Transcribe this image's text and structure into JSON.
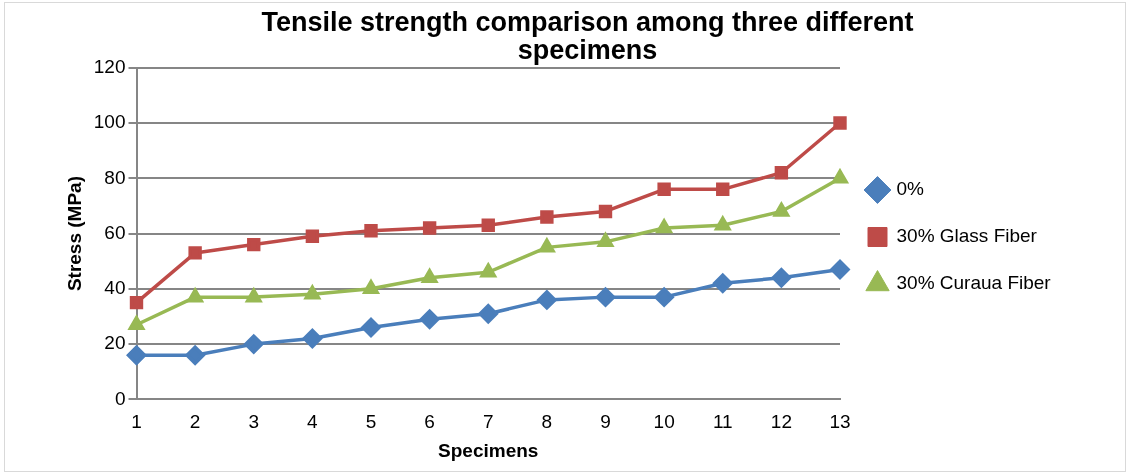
{
  "chart_data": {
    "type": "line",
    "title": "Tensile strength comparison among three different specimens",
    "xlabel": "Specimens",
    "ylabel": "Stress (MPa)",
    "categories": [
      "1",
      "2",
      "3",
      "4",
      "5",
      "6",
      "7",
      "8",
      "9",
      "10",
      "11",
      "12",
      "13"
    ],
    "ylim": [
      0,
      120
    ],
    "yticks": [
      0,
      20,
      40,
      60,
      80,
      100,
      120
    ],
    "grid": "y",
    "legend": "right",
    "series": [
      {
        "name": "0%",
        "color": "#4a7ebb",
        "marker": "diamond",
        "values": [
          16,
          16,
          20,
          22,
          26,
          29,
          31,
          36,
          37,
          37,
          42,
          44,
          47
        ]
      },
      {
        "name": "30% Glass Fiber",
        "color": "#be4b48",
        "marker": "square",
        "values": [
          35,
          53,
          56,
          59,
          61,
          62,
          63,
          66,
          68,
          76,
          76,
          82,
          100
        ]
      },
      {
        "name": "30% Curaua Fiber",
        "color": "#98b954",
        "marker": "triangle",
        "values": [
          27,
          37,
          37,
          38,
          40,
          44,
          46,
          55,
          57,
          62,
          63,
          68,
          80
        ]
      }
    ]
  }
}
